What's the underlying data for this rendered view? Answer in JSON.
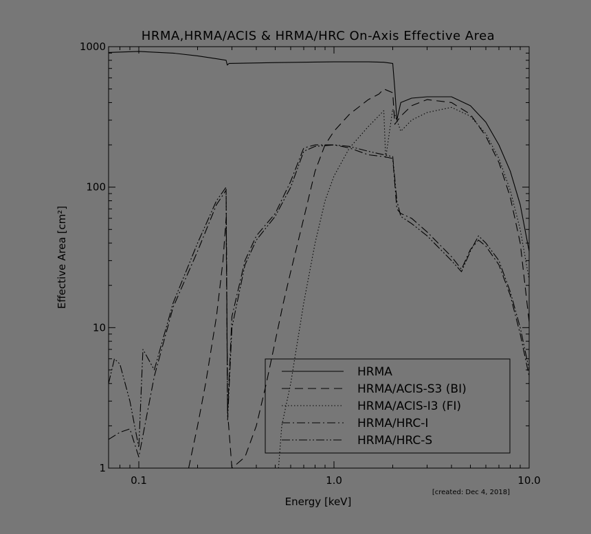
{
  "chart_data": {
    "type": "line",
    "title": "HRMA,HRMA/ACIS & HRMA/HRC On-Axis Effective Area",
    "xlabel": "Energy [keV]",
    "ylabel": "Effective Area [cm²]",
    "xscale": "log",
    "yscale": "log",
    "xlim": [
      0.07,
      10.0
    ],
    "ylim": [
      1,
      1000
    ],
    "x_ticks": [
      "0.1",
      "1.0",
      "10.0"
    ],
    "y_ticks": [
      "1",
      "10",
      "100",
      "1000"
    ],
    "grid": false,
    "legend_position": "bottom-right",
    "annotation": "[created: Dec  4, 2018]",
    "series": [
      {
        "name": "HRMA",
        "style": "solid",
        "x": [
          0.07,
          0.1,
          0.15,
          0.2,
          0.25,
          0.28,
          0.284,
          0.29,
          0.5,
          1.0,
          1.5,
          1.8,
          2.0,
          2.05,
          2.1,
          2.2,
          2.5,
          3.0,
          4.0,
          5.0,
          6.0,
          7.0,
          8.0,
          9.0,
          10.0
        ],
        "y": [
          910,
          925,
          900,
          860,
          820,
          800,
          740,
          760,
          770,
          780,
          780,
          775,
          760,
          500,
          300,
          400,
          430,
          440,
          440,
          380,
          290,
          200,
          130,
          75,
          35
        ]
      },
      {
        "name": "HRMA/ACIS-S3 (BI)",
        "style": "dashed",
        "x": [
          0.18,
          0.2,
          0.22,
          0.25,
          0.27,
          0.28,
          0.285,
          0.3,
          0.35,
          0.4,
          0.45,
          0.5,
          0.55,
          0.6,
          0.7,
          0.8,
          0.9,
          1.0,
          1.2,
          1.5,
          1.7,
          1.8,
          2.0,
          2.05,
          2.2,
          2.5,
          3.0,
          4.0,
          5.0,
          6.0,
          7.0,
          8.0,
          9.0,
          10.0
        ],
        "y": [
          1,
          2,
          4,
          12,
          30,
          60,
          2.5,
          1,
          1.2,
          2,
          4,
          8,
          15,
          25,
          60,
          130,
          200,
          250,
          330,
          420,
          460,
          500,
          470,
          280,
          320,
          380,
          420,
          400,
          330,
          230,
          150,
          85,
          40,
          11
        ]
      },
      {
        "name": "HRMA/ACIS-I3 (FI)",
        "style": "dotted",
        "x": [
          0.52,
          0.54,
          0.6,
          0.7,
          0.8,
          0.9,
          1.0,
          1.2,
          1.5,
          1.8,
          1.84,
          2.0,
          2.1,
          2.2,
          2.5,
          3.0,
          4.0,
          5.0,
          6.0,
          7.0,
          8.0,
          9.0,
          10.0
        ],
        "y": [
          1,
          2,
          4,
          15,
          40,
          80,
          120,
          190,
          270,
          350,
          160,
          360,
          300,
          250,
          300,
          340,
          370,
          320,
          240,
          160,
          95,
          50,
          22
        ]
      },
      {
        "name": "HRMA/HRC-I",
        "style": "dash-dot",
        "x": [
          0.07,
          0.08,
          0.09,
          0.1,
          0.12,
          0.15,
          0.2,
          0.25,
          0.28,
          0.285,
          0.3,
          0.35,
          0.4,
          0.5,
          0.6,
          0.7,
          0.8,
          1.0,
          1.2,
          1.5,
          1.8,
          2.0,
          2.1,
          2.2,
          2.5,
          3.0,
          4.0,
          4.5,
          5.0,
          5.5,
          6.0,
          7.0,
          8.0,
          9.0,
          10.0
        ],
        "y": [
          1.6,
          1.8,
          1.9,
          1.2,
          4.5,
          14,
          35,
          75,
          95,
          2.5,
          12,
          30,
          45,
          65,
          110,
          190,
          200,
          200,
          190,
          170,
          165,
          160,
          70,
          65,
          60,
          48,
          32,
          26,
          36,
          42,
          38,
          28,
          17,
          9,
          4.5
        ]
      },
      {
        "name": "HRMA/HRC-S",
        "style": "dash-dot-dot",
        "x": [
          0.07,
          0.075,
          0.08,
          0.09,
          0.1,
          0.105,
          0.12,
          0.15,
          0.2,
          0.25,
          0.28,
          0.285,
          0.3,
          0.35,
          0.4,
          0.5,
          0.6,
          0.7,
          0.8,
          1.0,
          1.2,
          1.5,
          1.8,
          2.0,
          2.1,
          2.2,
          2.5,
          3.0,
          4.0,
          4.5,
          5.0,
          5.5,
          6.0,
          7.0,
          8.0,
          9.0,
          10.0
        ],
        "y": [
          4,
          6,
          5.5,
          3,
          1.4,
          7,
          5,
          15,
          40,
          80,
          100,
          2.2,
          10,
          28,
          42,
          62,
          100,
          180,
          195,
          200,
          195,
          180,
          170,
          165,
          80,
          62,
          55,
          45,
          30,
          25,
          35,
          45,
          40,
          30,
          18,
          10,
          5
        ]
      }
    ]
  }
}
